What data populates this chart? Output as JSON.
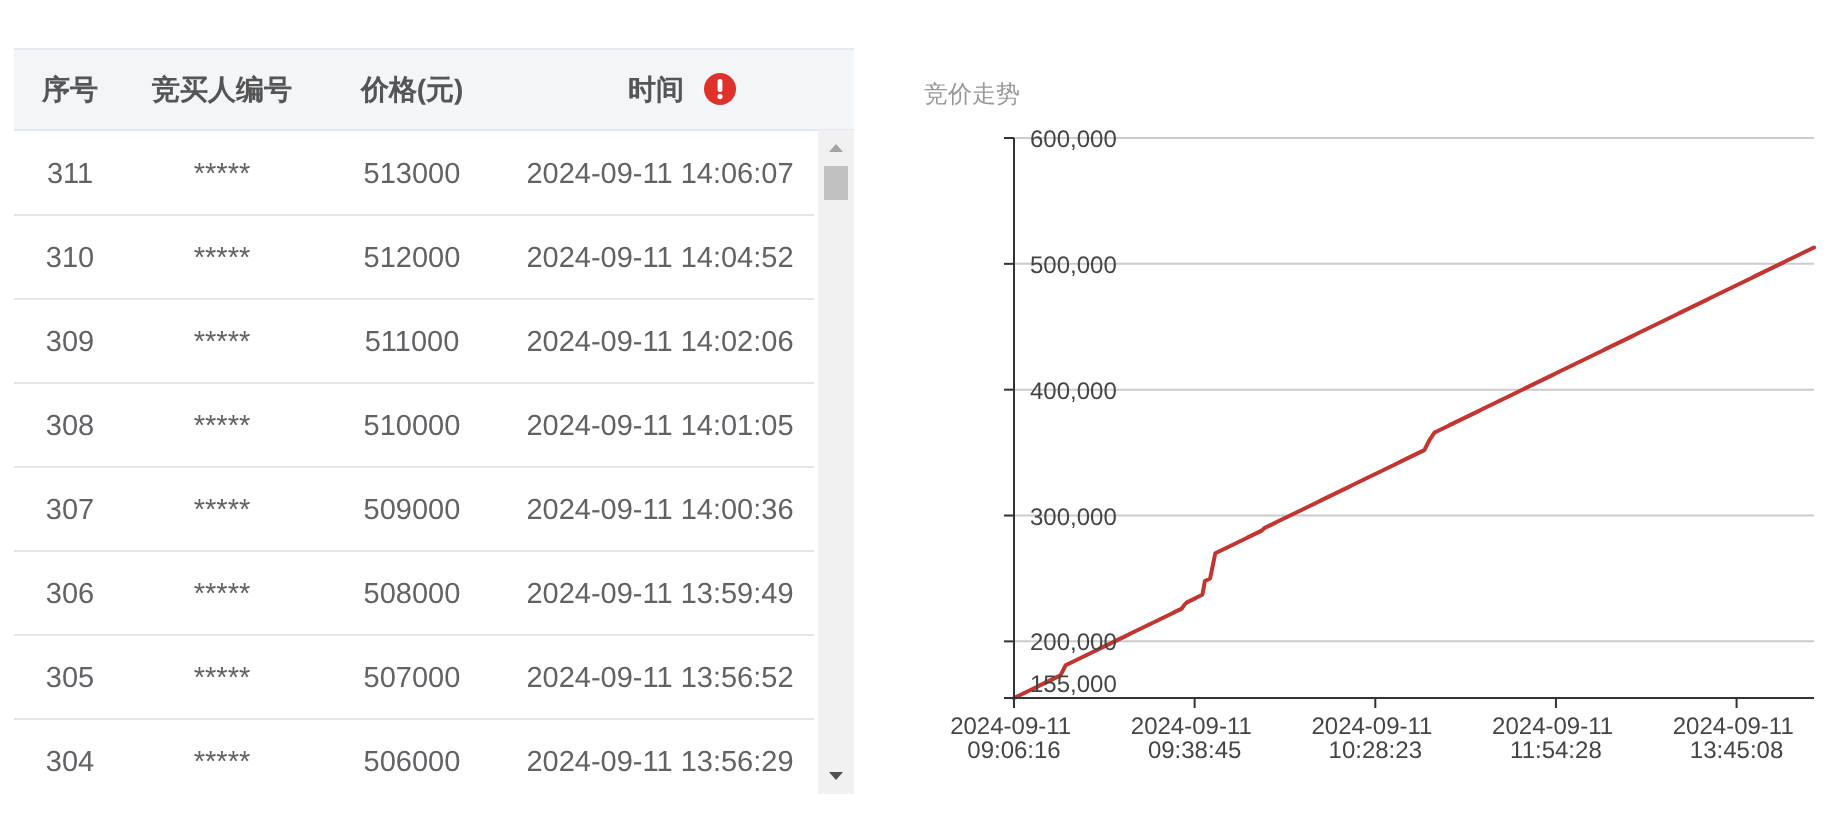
{
  "chart_data": [
    {
      "type": "heatmap",
      "ylabel": "序号",
      "categories": [
        "竞买人编号",
        "价格(元)",
        "时间"
      ],
      "y_categories": [
        "311",
        "310",
        "309",
        "308",
        "307",
        "306",
        "305",
        "304"
      ],
      "cells": [
        [
          null,
          null,
          null
        ],
        [
          null,
          null,
          null
        ],
        [
          null,
          null,
          null
        ],
        [
          null,
          null,
          null
        ],
        [
          null,
          null,
          null
        ],
        [
          null,
          null,
          null
        ],
        [
          null,
          null,
          null
        ],
        [
          null,
          null,
          null
        ]
      ],
      "cell_labels": [
        [
          "*****",
          "513000",
          "2024-09-11 14:06:07"
        ],
        [
          "*****",
          "512000",
          "2024-09-11 14:04:52"
        ],
        [
          "*****",
          "511000",
          "2024-09-11 14:02:06"
        ],
        [
          "*****",
          "510000",
          "2024-09-11 14:01:05"
        ],
        [
          "*****",
          "509000",
          "2024-09-11 14:00:36"
        ],
        [
          "*****",
          "508000",
          "2024-09-11 13:59:49"
        ],
        [
          "*****",
          "507000",
          "2024-09-11 13:56:52"
        ],
        [
          "*****",
          "506000",
          "2024-09-11 13:56:29"
        ]
      ]
    },
    {
      "type": "line",
      "title": "竞价走势",
      "categories": [
        "2024-09-11 09:06:16",
        null,
        null,
        null,
        null,
        null,
        null,
        null,
        null,
        null,
        null,
        null,
        null,
        null,
        null,
        null,
        null,
        null,
        null,
        null,
        null,
        null,
        null,
        null,
        null,
        null,
        null,
        null,
        null,
        null,
        null,
        null,
        null,
        null,
        null,
        null,
        null,
        null,
        null,
        null,
        null,
        null,
        null,
        null,
        null,
        null,
        null,
        null,
        null,
        null,
        null,
        null,
        null,
        null,
        null,
        null,
        null,
        null,
        null,
        null,
        null,
        null,
        null,
        null,
        null,
        null,
        null,
        null,
        null,
        null,
        "2024-09-11 09:38:45",
        null,
        null,
        null,
        null,
        null,
        null,
        null,
        null,
        null,
        null,
        null,
        null,
        null,
        null,
        null,
        null,
        null,
        null,
        null,
        null,
        null,
        null,
        null,
        null,
        null,
        null,
        null,
        null,
        null,
        null,
        null,
        null,
        null,
        null,
        null,
        null,
        null,
        null,
        null,
        null,
        null,
        null,
        null,
        null,
        null,
        null,
        null,
        null,
        null,
        null,
        null,
        null,
        null,
        null,
        null,
        null,
        null,
        null,
        null,
        null,
        null,
        null,
        null,
        null,
        null,
        null,
        null,
        null,
        null,
        "2024-09-11 10:28:23",
        null,
        null,
        null,
        null,
        null,
        null,
        null,
        null,
        null,
        null,
        null,
        null,
        null,
        null,
        null,
        null,
        null,
        null,
        null,
        null,
        null,
        null,
        null,
        null,
        null,
        null,
        null,
        null,
        null,
        null,
        null,
        null,
        null,
        null,
        null,
        null,
        null,
        null,
        null,
        null,
        null,
        null,
        null,
        null,
        null,
        null,
        null,
        null,
        null,
        null,
        null,
        null,
        null,
        null,
        null,
        null,
        null,
        null,
        null,
        null,
        null,
        null,
        null,
        null,
        null,
        null,
        null,
        null,
        null,
        "2024-09-11 11:54:28",
        null,
        null,
        null,
        null,
        null,
        null,
        null,
        null,
        null,
        null,
        null,
        null,
        null,
        null,
        null,
        null,
        null,
        null,
        null,
        null,
        null,
        null,
        null,
        null,
        null,
        null,
        null,
        null,
        null,
        null,
        null,
        null,
        null,
        null,
        null,
        null,
        null,
        null,
        null,
        null,
        null,
        null,
        null,
        null,
        null,
        null,
        null,
        null,
        null,
        null,
        null,
        null,
        null,
        null,
        null,
        null,
        null,
        null,
        null,
        null,
        null,
        null,
        null,
        null,
        null,
        null,
        null,
        null,
        null,
        "2024-09-11 13:45:08",
        null,
        null,
        null,
        null,
        null,
        null,
        null,
        null,
        null,
        null,
        null,
        null,
        null,
        null,
        null,
        null,
        null,
        null,
        null,
        null,
        null,
        null,
        null,
        null,
        null,
        null,
        null,
        null,
        null,
        null
      ],
      "values": [
        155000,
        156000,
        157000,
        158000,
        159000,
        160000,
        161000,
        162000,
        163000,
        164000,
        165000,
        166000,
        167000,
        168000,
        169000,
        170000,
        171000,
        172000,
        173000,
        177000,
        181000,
        182000,
        183000,
        184000,
        185000,
        186000,
        187000,
        188000,
        189000,
        190000,
        191000,
        192000,
        193000,
        194000,
        195000,
        196000,
        197000,
        198000,
        199000,
        200000,
        201000,
        202000,
        203000,
        204000,
        205000,
        206000,
        207000,
        208000,
        209000,
        210000,
        211000,
        212000,
        213000,
        214000,
        215000,
        216000,
        217000,
        218000,
        219000,
        220000,
        221000,
        222000,
        223000,
        224000,
        225000,
        226000,
        229000,
        231000,
        232000,
        233000,
        234000,
        235000,
        236000,
        237000,
        248000,
        249000,
        250000,
        260000,
        270000,
        271000,
        272000,
        273000,
        274000,
        275000,
        276000,
        277000,
        278000,
        279000,
        280000,
        281000,
        282000,
        283000,
        284000,
        285000,
        286000,
        287000,
        288000,
        290000,
        291000,
        292000,
        293000,
        294000,
        295000,
        296000,
        297000,
        298000,
        299000,
        300000,
        301000,
        302000,
        303000,
        304000,
        305000,
        306000,
        307000,
        308000,
        309000,
        310000,
        311000,
        312000,
        313000,
        314000,
        315000,
        316000,
        317000,
        318000,
        319000,
        320000,
        321000,
        322000,
        323000,
        324000,
        325000,
        326000,
        327000,
        328000,
        329000,
        330000,
        331000,
        332000,
        333000,
        334000,
        335000,
        336000,
        337000,
        338000,
        339000,
        340000,
        341000,
        342000,
        343000,
        344000,
        345000,
        346000,
        347000,
        348000,
        349000,
        350000,
        351000,
        352000,
        356000,
        360000,
        363000,
        366000,
        367000,
        368000,
        369000,
        370000,
        371000,
        372000,
        373000,
        374000,
        375000,
        376000,
        377000,
        378000,
        379000,
        380000,
        381000,
        382000,
        383000,
        384000,
        385000,
        386000,
        387000,
        388000,
        389000,
        390000,
        391000,
        392000,
        393000,
        394000,
        395000,
        396000,
        397000,
        398000,
        399000,
        400000,
        401000,
        402000,
        403000,
        404000,
        405000,
        406000,
        407000,
        408000,
        409000,
        410000,
        411000,
        412000,
        413000,
        414000,
        415000,
        416000,
        417000,
        418000,
        419000,
        420000,
        421000,
        422000,
        423000,
        424000,
        425000,
        426000,
        427000,
        428000,
        429000,
        430000,
        431000,
        432000,
        433000,
        434000,
        435000,
        436000,
        437000,
        438000,
        439000,
        440000,
        441000,
        442000,
        443000,
        444000,
        445000,
        446000,
        447000,
        448000,
        449000,
        450000,
        451000,
        452000,
        453000,
        454000,
        455000,
        456000,
        457000,
        458000,
        459000,
        460000,
        461000,
        462000,
        463000,
        464000,
        465000,
        466000,
        467000,
        468000,
        469000,
        470000,
        471000,
        472000,
        473000,
        474000,
        475000,
        476000,
        477000,
        478000,
        479000,
        480000,
        481000,
        482000,
        483000,
        484000,
        485000,
        486000,
        487000,
        488000,
        489000,
        490000,
        491000,
        492000,
        493000,
        494000,
        495000,
        496000,
        497000,
        498000,
        499000,
        500000,
        501000,
        502000,
        503000,
        504000,
        505000,
        506000,
        507000,
        508000,
        509000,
        510000,
        511000,
        512000,
        513000
      ],
      "color": "#c23531",
      "ylim": [
        155000,
        600000
      ],
      "yticks": [
        {
          "value": 155000,
          "label": "155,000"
        },
        {
          "value": 200000,
          "label": "200,000"
        },
        {
          "value": 300000,
          "label": "300,000"
        },
        {
          "value": 400000,
          "label": "400,000"
        },
        {
          "value": 500000,
          "label": "500,000"
        },
        {
          "value": 600000,
          "label": "600,000"
        }
      ],
      "grid": "y"
    }
  ]
}
